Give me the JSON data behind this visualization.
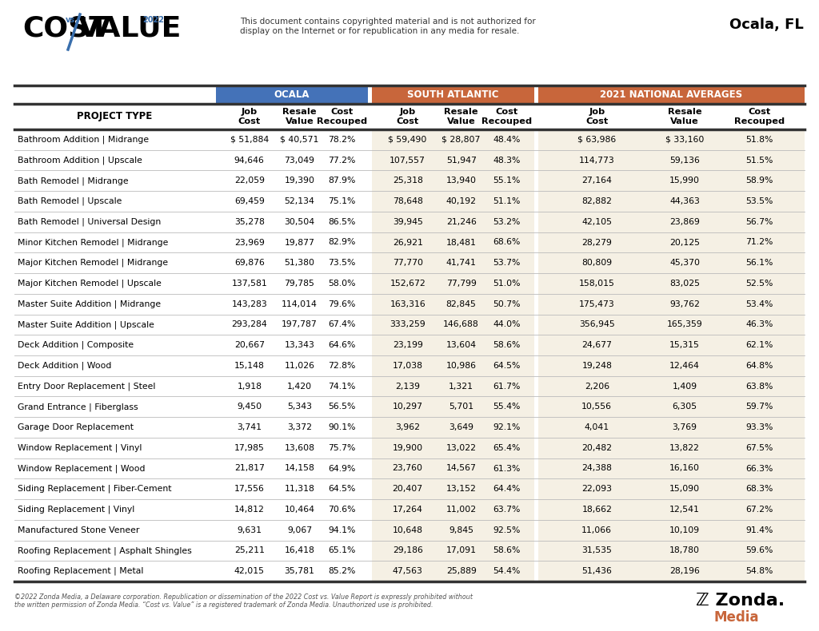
{
  "title": "Ocala, FL",
  "copyright_text": "©2022 Zonda Media, a Delaware corporation. Republication or dissemination of the 2022 Cost vs. Value Report is expressly prohibited without\nthe written permission of Zonda Media. “Cost vs. Value” is a registered trademark of Zonda Media. Unauthorized use is prohibited.",
  "disclaimer": "This document contains copyrighted material and is not authorized for\ndisplay on the Internet or for republication in any media for resale.",
  "project_type_header": "PROJECT TYPE",
  "ocala_color": "#4472b8",
  "south_atlantic_color": "#c8663b",
  "national_color": "#c8663b",
  "sa_bg_color": "#f5f0e4",
  "nat_bg_color": "#f5f0e4",
  "row_separator_color": "#cccccc",
  "thick_line_color": "#333333",
  "rows": [
    [
      "Bathroom Addition | Midrange",
      "$ 51,884",
      "$ 40,571",
      "78.2%",
      "$ 59,490",
      "$ 28,807",
      "48.4%",
      "$ 63,986",
      "$ 33,160",
      "51.8%"
    ],
    [
      "Bathroom Addition | Upscale",
      "94,646",
      "73,049",
      "77.2%",
      "107,557",
      "51,947",
      "48.3%",
      "114,773",
      "59,136",
      "51.5%"
    ],
    [
      "Bath Remodel | Midrange",
      "22,059",
      "19,390",
      "87.9%",
      "25,318",
      "13,940",
      "55.1%",
      "27,164",
      "15,990",
      "58.9%"
    ],
    [
      "Bath Remodel | Upscale",
      "69,459",
      "52,134",
      "75.1%",
      "78,648",
      "40,192",
      "51.1%",
      "82,882",
      "44,363",
      "53.5%"
    ],
    [
      "Bath Remodel | Universal Design",
      "35,278",
      "30,504",
      "86.5%",
      "39,945",
      "21,246",
      "53.2%",
      "42,105",
      "23,869",
      "56.7%"
    ],
    [
      "Minor Kitchen Remodel | Midrange",
      "23,969",
      "19,877",
      "82.9%",
      "26,921",
      "18,481",
      "68.6%",
      "28,279",
      "20,125",
      "71.2%"
    ],
    [
      "Major Kitchen Remodel | Midrange",
      "69,876",
      "51,380",
      "73.5%",
      "77,770",
      "41,741",
      "53.7%",
      "80,809",
      "45,370",
      "56.1%"
    ],
    [
      "Major Kitchen Remodel | Upscale",
      "137,581",
      "79,785",
      "58.0%",
      "152,672",
      "77,799",
      "51.0%",
      "158,015",
      "83,025",
      "52.5%"
    ],
    [
      "Master Suite Addition | Midrange",
      "143,283",
      "114,014",
      "79.6%",
      "163,316",
      "82,845",
      "50.7%",
      "175,473",
      "93,762",
      "53.4%"
    ],
    [
      "Master Suite Addition | Upscale",
      "293,284",
      "197,787",
      "67.4%",
      "333,259",
      "146,688",
      "44.0%",
      "356,945",
      "165,359",
      "46.3%"
    ],
    [
      "Deck Addition | Composite",
      "20,667",
      "13,343",
      "64.6%",
      "23,199",
      "13,604",
      "58.6%",
      "24,677",
      "15,315",
      "62.1%"
    ],
    [
      "Deck Addition | Wood",
      "15,148",
      "11,026",
      "72.8%",
      "17,038",
      "10,986",
      "64.5%",
      "19,248",
      "12,464",
      "64.8%"
    ],
    [
      "Entry Door Replacement | Steel",
      "1,918",
      "1,420",
      "74.1%",
      "2,139",
      "1,321",
      "61.7%",
      "2,206",
      "1,409",
      "63.8%"
    ],
    [
      "Grand Entrance | Fiberglass",
      "9,450",
      "5,343",
      "56.5%",
      "10,297",
      "5,701",
      "55.4%",
      "10,556",
      "6,305",
      "59.7%"
    ],
    [
      "Garage Door Replacement",
      "3,741",
      "3,372",
      "90.1%",
      "3,962",
      "3,649",
      "92.1%",
      "4,041",
      "3,769",
      "93.3%"
    ],
    [
      "Window Replacement | Vinyl",
      "17,985",
      "13,608",
      "75.7%",
      "19,900",
      "13,022",
      "65.4%",
      "20,482",
      "13,822",
      "67.5%"
    ],
    [
      "Window Replacement | Wood",
      "21,817",
      "14,158",
      "64.9%",
      "23,760",
      "14,567",
      "61.3%",
      "24,388",
      "16,160",
      "66.3%"
    ],
    [
      "Siding Replacement | Fiber-Cement",
      "17,556",
      "11,318",
      "64.5%",
      "20,407",
      "13,152",
      "64.4%",
      "22,093",
      "15,090",
      "68.3%"
    ],
    [
      "Siding Replacement | Vinyl",
      "14,812",
      "10,464",
      "70.6%",
      "17,264",
      "11,002",
      "63.7%",
      "18,662",
      "12,541",
      "67.2%"
    ],
    [
      "Manufactured Stone Veneer",
      "9,631",
      "9,067",
      "94.1%",
      "10,648",
      "9,845",
      "92.5%",
      "11,066",
      "10,109",
      "91.4%"
    ],
    [
      "Roofing Replacement | Asphalt Shingles",
      "25,211",
      "16,418",
      "65.1%",
      "29,186",
      "17,091",
      "58.6%",
      "31,535",
      "18,780",
      "59.6%"
    ],
    [
      "Roofing Replacement | Metal",
      "42,015",
      "35,781",
      "85.2%",
      "47,563",
      "25,889",
      "54.4%",
      "51,436",
      "28,196",
      "54.8%"
    ]
  ],
  "bg_color": "#ffffff",
  "font_size_rows": 7.8,
  "font_size_subhdr": 8.2,
  "font_size_section": 8.5,
  "font_size_proj_hdr": 8.5
}
